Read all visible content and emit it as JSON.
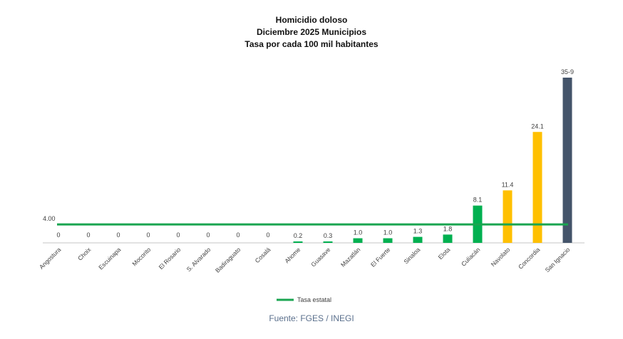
{
  "chart_data": {
    "type": "bar",
    "title": [
      "Homicidio doloso",
      "Diciembre 2025 Municipios",
      "Tasa por cada 100 mil habitantes"
    ],
    "categories": [
      "Angostura",
      "Choix",
      "Escuinapa",
      "Mocorito",
      "El Rosario",
      "S. Alvarado",
      "Badiraguato",
      "Cosalá",
      "Ahome",
      "Guasave",
      "Mazatlán",
      "El Fuerte",
      "Sinaloa",
      "Elota",
      "Culiacán",
      "Navolato",
      "Concordia",
      "San Ignacio"
    ],
    "values": [
      0,
      0,
      0,
      0,
      0,
      0,
      0,
      0,
      0.2,
      0.3,
      1.0,
      1.0,
      1.3,
      1.8,
      8.1,
      11.4,
      24.1,
      35.9
    ],
    "value_labels": [
      "0",
      "0",
      "0",
      "0",
      "0",
      "0",
      "0",
      "0",
      "0.2",
      "0.3",
      "1.0",
      "1.0",
      "1.3",
      "1.8",
      "8.1",
      "11.4",
      "24.1",
      "35-9"
    ],
    "bar_colors": [
      "#00b050",
      "#00b050",
      "#00b050",
      "#00b050",
      "#00b050",
      "#00b050",
      "#00b050",
      "#00b050",
      "#00b050",
      "#00b050",
      "#00b050",
      "#00b050",
      "#00b050",
      "#00b050",
      "#00b050",
      "#ffc000",
      "#ffc000",
      "#44546a"
    ],
    "reference_line": {
      "name": "Tasa estatal",
      "value": 4.0,
      "label": "4.00",
      "color": "#1aa550"
    },
    "ylim": [
      0,
      36
    ],
    "xlabel": "",
    "ylabel": "",
    "grid": false,
    "legend": "bottom-center",
    "source": "Fuente: FGES / INEGI"
  }
}
